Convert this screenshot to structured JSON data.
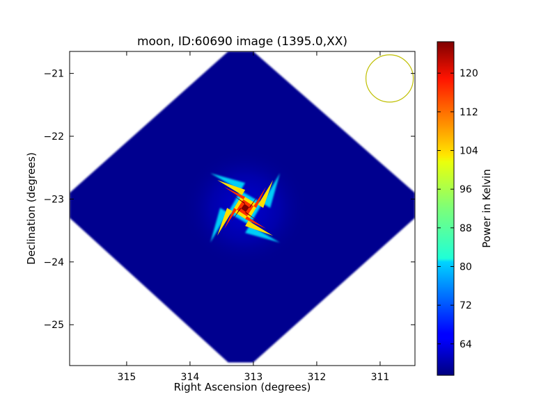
{
  "chart_data": {
    "type": "heatmap",
    "title": "moon, ID:60690 image (1395.0,XX)",
    "xlabel": "Right Ascension (degrees)",
    "ylabel": "Declination (degrees)",
    "xlim": [
      315.9,
      310.45
    ],
    "ylim": [
      -25.65,
      -20.65
    ],
    "x_ticks": [
      315,
      314,
      313,
      312,
      311
    ],
    "y_ticks": [
      -21,
      -22,
      -23,
      -24,
      -25
    ],
    "x_tick_labels": [
      "315",
      "314",
      "313",
      "312",
      "311"
    ],
    "y_tick_labels": [
      "−21",
      "−22",
      "−23",
      "−24",
      "−25"
    ],
    "colorbar": {
      "label": "Power in Kelvin",
      "colormap": "jet",
      "range": [
        57.5,
        126.5
      ],
      "ticks": [
        64,
        72,
        80,
        88,
        96,
        104,
        112,
        120
      ],
      "tick_labels": [
        "64",
        "72",
        "80",
        "88",
        "96",
        "104",
        "112",
        "120"
      ]
    },
    "image_region": {
      "shape": "diamond",
      "center": [
        313.2,
        -23.1
      ],
      "extent_ra": [
        315.9,
        310.45
      ],
      "extent_dec": [
        -25.6,
        -20.65
      ],
      "background_value": 60
    },
    "source": {
      "peak_position": [
        313.13,
        -23.14
      ],
      "peak_value": 126,
      "shape": "x-shaped cross"
    },
    "beam_circle": {
      "center": [
        310.85,
        -21.08
      ],
      "color": "#bfbf00"
    }
  }
}
